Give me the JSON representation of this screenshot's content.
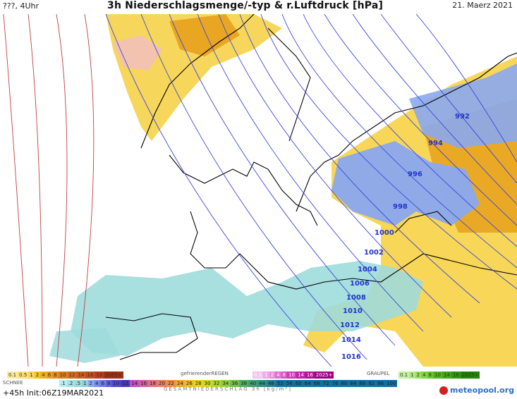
{
  "header": {
    "left": "???, 4Uhr",
    "title": "3h Niederschlagsmenge/-typ & r.Luftdruck [hPa]",
    "date": "21. Maerz 2021"
  },
  "isobars": [
    {
      "label": "992",
      "color": "#2233cc"
    },
    {
      "label": "994",
      "color": "#2233cc"
    },
    {
      "label": "996",
      "color": "#2233cc"
    },
    {
      "label": "998",
      "color": "#2233cc"
    },
    {
      "label": "1000",
      "color": "#2233cc"
    },
    {
      "label": "1002",
      "color": "#2233cc"
    },
    {
      "label": "1004",
      "color": "#2233cc"
    },
    {
      "label": "1006",
      "color": "#2233cc"
    },
    {
      "label": "1008",
      "color": "#2233cc"
    },
    {
      "label": "1010",
      "color": "#2233cc"
    },
    {
      "label": "1012",
      "color": "#2233cc"
    },
    {
      "label": "1014",
      "color": "#2233cc"
    },
    {
      "label": "1016",
      "color": "#2233cc"
    }
  ],
  "legend": {
    "rain_scale": [
      "0.1",
      "0.5",
      "1",
      "2",
      "4",
      "6",
      "8",
      "10",
      "12",
      "14",
      "16",
      "18",
      "2025+"
    ],
    "freezing_label": "gefrierenderREGEN",
    "freezing_scale": [
      "0.1",
      "1",
      "2",
      "4",
      "8",
      "10",
      "14",
      "16",
      "2025+"
    ],
    "graupel_label": "GRAUPEL",
    "graupel_scale": [
      "0.1",
      "1",
      "2",
      "4",
      "8",
      "10",
      "14",
      "16",
      "2025+"
    ],
    "snow_label": "SCHNEE",
    "snow_scale": [
      ".1",
      ".2",
      ".5",
      "1",
      "2",
      "4",
      "6",
      "8",
      "10",
      "12",
      "14",
      "16",
      "18",
      "20",
      "22",
      "24",
      "26",
      "28",
      "30",
      "32",
      "34",
      "36",
      "38",
      "40",
      "44",
      "48",
      "52",
      "56",
      "60",
      "64",
      "68",
      "72",
      "76",
      "80",
      "84",
      "88",
      "92",
      "96",
      "100"
    ],
    "total_label": "GESAMTNIEDERSCHLAG 3h [kg/m²]"
  },
  "footer": {
    "init": "+45h Init:06Z19MAR2021",
    "logo": "meteopool.org"
  },
  "colors": {
    "rain_yellow": "#f5c518",
    "rain_orange": "#e8a020",
    "snow_blue": "#8aa8f0",
    "snow_cyan": "#9fdcdc",
    "isobar_blue": "#3a48d8",
    "isobar_red": "#c04040"
  }
}
